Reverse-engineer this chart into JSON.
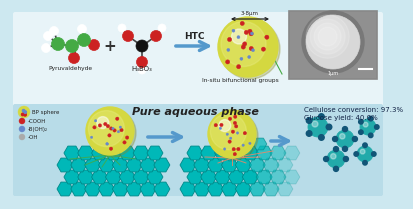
{
  "bg_color": "#cde8f0",
  "top_panel_color": "#e8f4f8",
  "bot_panel_color": "#b8dce8",
  "border_color": "#7ab8cc",
  "title_text": "Pure aqueous phase",
  "size_label": "3-8μm",
  "insitu_label": "In-situ bifunctional groups",
  "htc_label": "HTC",
  "pyruvaldehyde_label": "Pyruvaldehyde",
  "h3bo3_label": "H₃BO₃",
  "legend_items": [
    "BP sphere",
    "-COOH",
    "-B(OH)₂",
    "-OH"
  ],
  "result_text1": "Cellulose conversion: 97.3%",
  "result_text2": "Glucose yield: 40.0%",
  "plus_sign": "+",
  "arrow_color": "#5599cc",
  "cellulose_color": "#00b8b8",
  "cellulose_edge": "#008888",
  "sphere_color_outer": "#d4d840",
  "sphere_color_inner": "#c8cc30",
  "sphere_highlight": "#e8ec80",
  "cooh_color": "#cc2222",
  "bioh_color": "#6688cc",
  "oh_color": "#aaaaaa",
  "sem_bg": "#aaaaaa",
  "sem_sphere": "#cccccc",
  "scale_label": "1μm",
  "green_line_color": "#44aa44",
  "salmon_line_color": "#ee8866",
  "glucose_color": "#22aaaa",
  "glucose_dark": "#115577"
}
